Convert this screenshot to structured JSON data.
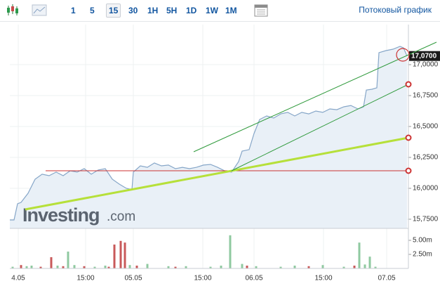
{
  "toolbar": {
    "intervals": [
      "1",
      "5",
      "15",
      "30",
      "1H",
      "5H",
      "1D",
      "1W",
      "1M"
    ],
    "selected": 2,
    "stream_link": "Потоковый график"
  },
  "watermark": {
    "brand": "Investing",
    "suffix": ".com"
  },
  "chart_data": [
    {
      "type": "area",
      "color": "#86a6c8",
      "fill": "#e9f0f7",
      "last_label": "17,0700",
      "grid": true,
      "x": [
        0,
        6,
        11,
        16,
        26,
        36,
        46,
        56,
        66,
        76,
        86,
        96,
        106,
        116,
        126,
        136,
        146,
        156,
        166,
        174,
        176,
        186,
        196,
        206,
        216,
        226,
        236,
        246,
        256,
        266,
        276,
        286,
        296,
        306,
        316,
        326,
        331,
        341,
        348,
        356,
        366,
        376,
        386,
        396,
        406,
        416,
        426,
        436,
        446,
        456,
        466,
        476,
        486,
        496,
        504,
        508,
        516,
        523,
        526,
        536,
        546,
        556,
        561,
        566
      ],
      "values": [
        15.744,
        15.744,
        15.875,
        15.886,
        15.96,
        16.074,
        16.114,
        16.102,
        16.131,
        16.102,
        16.142,
        16.131,
        16.159,
        16.114,
        16.148,
        16.159,
        16.074,
        16.034,
        16.0,
        15.989,
        16.131,
        16.182,
        16.17,
        16.205,
        16.182,
        16.188,
        16.159,
        16.17,
        16.159,
        16.17,
        16.188,
        16.193,
        16.17,
        16.142,
        16.131,
        16.216,
        16.301,
        16.313,
        16.443,
        16.557,
        16.585,
        16.568,
        16.602,
        16.614,
        16.585,
        16.614,
        16.602,
        16.625,
        16.614,
        16.642,
        16.636,
        16.659,
        16.67,
        16.642,
        16.659,
        16.795,
        16.801,
        16.813,
        17.097,
        17.114,
        17.125,
        17.148,
        17.136,
        17.07
      ],
      "xlim": [
        0,
        568
      ],
      "ylim": [
        15.676,
        17.324
      ],
      "yticks": [
        {
          "value": 15.75,
          "label": "15,7500"
        },
        {
          "value": 16,
          "label": "16,0000"
        },
        {
          "value": 16.25,
          "label": "16,2500"
        },
        {
          "value": 16.5,
          "label": "16,5000"
        },
        {
          "value": 16.75,
          "label": "16,7500"
        },
        {
          "value": 17,
          "label": "17,0000"
        }
      ]
    },
    {
      "type": "bar",
      "grid": true,
      "x": [
        4,
        16,
        24,
        31,
        44,
        59,
        68,
        76,
        83,
        92,
        106,
        121,
        136,
        141,
        149,
        158,
        164,
        171,
        181,
        196,
        226,
        236,
        251,
        286,
        301,
        314,
        331,
        338,
        351,
        386,
        406,
        426,
        446,
        476,
        491,
        498,
        506,
        513,
        521
      ],
      "values": [
        300000,
        600000,
        400000,
        500000,
        300000,
        2000000,
        500000,
        400000,
        3000000,
        600000,
        400000,
        300000,
        500000,
        300000,
        4250000,
        4900000,
        4600000,
        600000,
        500000,
        800000,
        400000,
        300000,
        400000,
        300000,
        500000,
        5900000,
        800000,
        500000,
        400000,
        300000,
        500000,
        400000,
        600000,
        300000,
        500000,
        4600000,
        700000,
        2100000,
        300000
      ],
      "colors": [
        "#8fc9a0",
        "#c8595a",
        "#8fc9a0",
        "#8fc9a0",
        "#c8595a",
        "#c8595a",
        "#8fc9a0",
        "#c8595a",
        "#8fc9a0",
        "#8fc9a0",
        "#c8595a",
        "#8fc9a0",
        "#8fc9a0",
        "#c8595a",
        "#c8595a",
        "#c8595a",
        "#c8595a",
        "#8fc9a0",
        "#c8595a",
        "#8fc9a0",
        "#8fc9a0",
        "#c8595a",
        "#8fc9a0",
        "#8fc9a0",
        "#8fc9a0",
        "#8fc9a0",
        "#8fc9a0",
        "#c8595a",
        "#8fc9a0",
        "#8fc9a0",
        "#8fc9a0",
        "#c8595a",
        "#8fc9a0",
        "#8fc9a0",
        "#c8595a",
        "#8fc9a0",
        "#8fc9a0",
        "#8fc9a0",
        "#8fc9a0"
      ],
      "xlim": [
        0,
        568
      ],
      "ylim": [
        0,
        6500000
      ],
      "yticks": [
        {
          "value": 2500000,
          "label": "2.50m"
        },
        {
          "value": 5000000,
          "label": "5.00m"
        }
      ],
      "xticks": [
        {
          "value": 12,
          "label": "4.05"
        },
        {
          "value": 108,
          "label": "15:00"
        },
        {
          "value": 176,
          "label": "05.05"
        },
        {
          "value": 275,
          "label": "15:00"
        },
        {
          "value": 348,
          "label": "06.05"
        },
        {
          "value": 447,
          "label": "15:00"
        },
        {
          "value": 537,
          "label": "07.05"
        }
      ]
    }
  ]
}
